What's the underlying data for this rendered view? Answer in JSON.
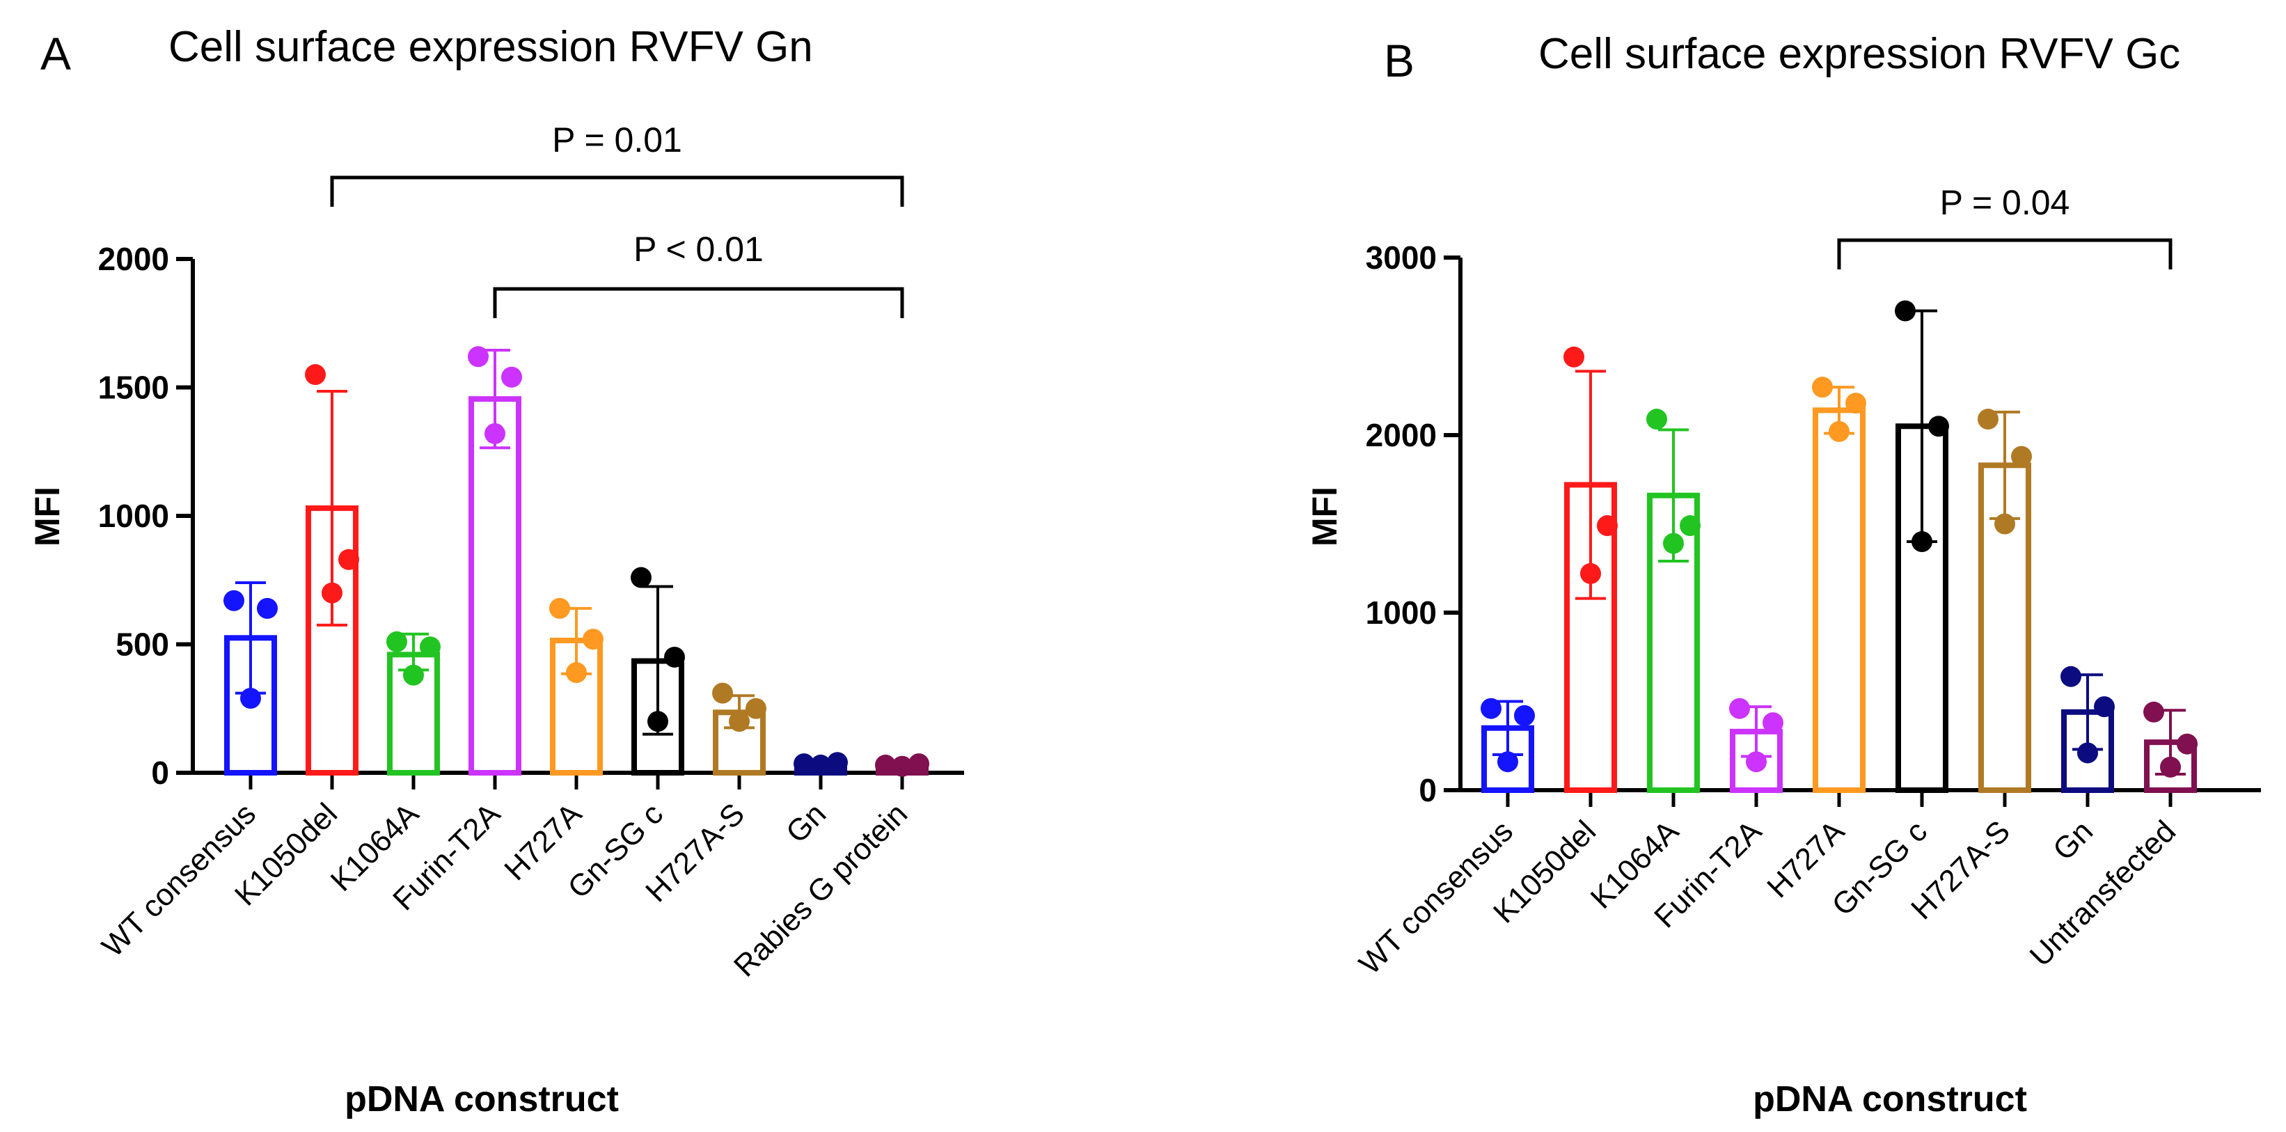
{
  "panels": [
    {
      "id": "A",
      "letter": "A",
      "title": "Cell surface expression RVFV Gn",
      "ylabel": "MFI",
      "xlabel": "pDNA construct",
      "yticks": [
        0,
        500,
        1000,
        1500,
        2000
      ],
      "comparisons": [
        {
          "from": "K1050del",
          "to": "Rabies G protein",
          "label": "P = 0.01"
        },
        {
          "from": "Furin-T2A",
          "to": "Rabies G protein",
          "label": "P < 0.01"
        }
      ]
    },
    {
      "id": "B",
      "letter": "B",
      "title": "Cell surface expression RVFV Gc",
      "ylabel": "MFI",
      "xlabel": "pDNA construct",
      "yticks": [
        0,
        1000,
        2000,
        3000
      ],
      "comparisons": [
        {
          "from": "H727A",
          "to": "Untransfected",
          "label": "P = 0.04"
        }
      ]
    }
  ],
  "chart_data": [
    {
      "type": "bar",
      "title": "Cell surface expression RVFV Gn",
      "xlabel": "pDNA construct",
      "ylabel": "MFI",
      "ylim": [
        0,
        2000
      ],
      "categories": [
        "WT consensus",
        "K1050del",
        "K1064A",
        "Furin-T2A",
        "H727A",
        "Gn-SG c",
        "H727A-S",
        "Gn",
        "Rabies G protein"
      ],
      "colors": [
        "#1414ff",
        "#ff1a1a",
        "#22c422",
        "#cc33ff",
        "#ff9922",
        "#000000",
        "#b07a24",
        "#0c0c80",
        "#80104f"
      ],
      "values": [
        525,
        1030,
        460,
        1455,
        515,
        435,
        235,
        35,
        30
      ],
      "error_upper": [
        740,
        1485,
        540,
        1645,
        640,
        725,
        300,
        45,
        40
      ],
      "error_lower": [
        310,
        575,
        400,
        1265,
        385,
        150,
        175,
        25,
        20
      ],
      "points": [
        [
          670,
          640,
          290
        ],
        [
          1550,
          830,
          700
        ],
        [
          510,
          490,
          380
        ],
        [
          1620,
          1540,
          1320
        ],
        [
          640,
          520,
          390
        ],
        [
          760,
          450,
          200
        ],
        [
          310,
          250,
          200
        ],
        [
          35,
          40,
          30
        ],
        [
          30,
          35,
          25
        ]
      ],
      "grid": false,
      "legend": "none"
    },
    {
      "type": "bar",
      "title": "Cell surface expression RVFV Gc",
      "xlabel": "pDNA construct",
      "ylabel": "MFI",
      "ylim": [
        0,
        3000
      ],
      "categories": [
        "WT consensus",
        "K1050del",
        "K1064A",
        "Furin-T2A",
        "H727A",
        "Gn-SG c",
        "H727A-S",
        "Gn",
        "Untransfected"
      ],
      "colors": [
        "#1414ff",
        "#ff1a1a",
        "#22c422",
        "#cc33ff",
        "#ff9922",
        "#000000",
        "#b07a24",
        "#0c0c80",
        "#80104f"
      ],
      "values": [
        350,
        1720,
        1660,
        330,
        2140,
        2050,
        1830,
        440,
        270
      ],
      "error_upper": [
        500,
        2360,
        2030,
        470,
        2270,
        2700,
        2130,
        650,
        450
      ],
      "error_lower": [
        200,
        1080,
        1290,
        190,
        2010,
        1400,
        1530,
        230,
        90
      ],
      "points": [
        [
          460,
          420,
          160
        ],
        [
          2440,
          1490,
          1220
        ],
        [
          2090,
          1490,
          1390
        ],
        [
          460,
          380,
          160
        ],
        [
          2270,
          2180,
          2020
        ],
        [
          2700,
          2050,
          1400
        ],
        [
          2090,
          1880,
          1500
        ],
        [
          640,
          470,
          210
        ],
        [
          440,
          260,
          130
        ]
      ],
      "grid": false,
      "legend": "none"
    }
  ]
}
